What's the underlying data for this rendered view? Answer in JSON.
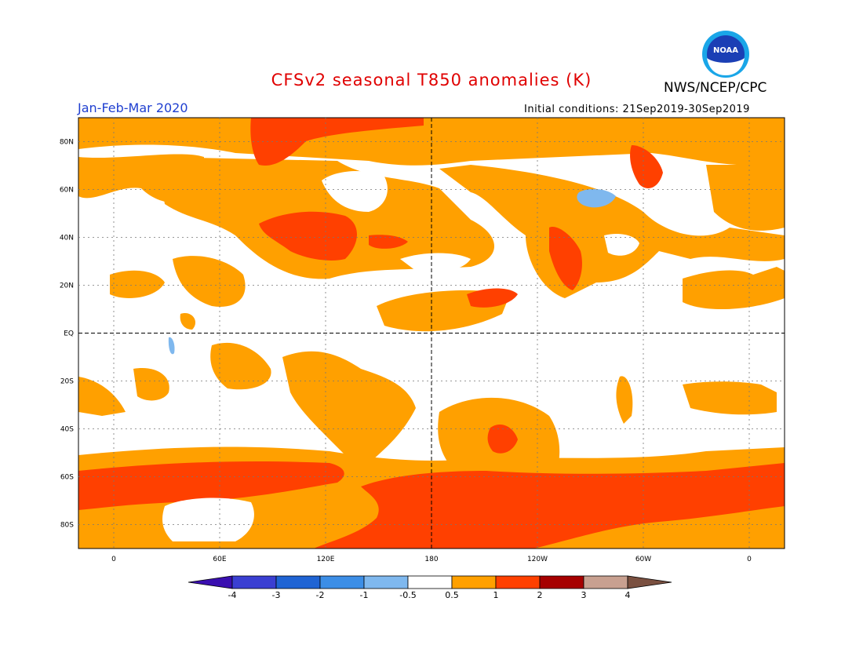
{
  "header": {
    "title": "CFSv2 seasonal T850 anomalies (K)",
    "agency": "NWS/NCEP/CPC",
    "period": "Jan-Feb-Mar 2020",
    "initial_conditions": "Initial conditions: 21Sep2019-30Sep2019",
    "logo_text": "NOAA"
  },
  "map": {
    "projection": "cylindrical-equidistant",
    "lat_labels": [
      "80N",
      "60N",
      "40N",
      "20N",
      "EQ",
      "20S",
      "40S",
      "60S",
      "80S"
    ],
    "lat_values": [
      80,
      60,
      40,
      20,
      0,
      -20,
      -40,
      -60,
      -80
    ],
    "lon_labels": [
      "0",
      "60E",
      "120E",
      "180",
      "120W",
      "60W",
      "0"
    ],
    "lon_values": [
      0,
      60,
      120,
      180,
      240,
      300,
      360
    ],
    "lon_range": [
      -20,
      380
    ],
    "lat_range": [
      -90,
      90
    ],
    "grid": "dotted",
    "dashed_lines": [
      "EQ",
      "180"
    ]
  },
  "colorbar": {
    "labels": [
      "-4",
      "-3",
      "-2",
      "-1",
      "-0.5",
      "0.5",
      "1",
      "2",
      "3",
      "4"
    ],
    "colors": [
      "#3a0fb0",
      "#3a3fd2",
      "#1f64d4",
      "#3c8ee6",
      "#7fb8ee",
      "#ffffff",
      "#ffa000",
      "#ff4000",
      "#a60000",
      "#c8a090",
      "#7a5040"
    ]
  },
  "colors": {
    "anomaly_0_5_to_1": "#ffa000",
    "anomaly_1_to_2": "#ff4000",
    "anomaly_neg": "#7fb8ee",
    "title_red": "#e00000",
    "period_blue": "#1f3fd0"
  }
}
